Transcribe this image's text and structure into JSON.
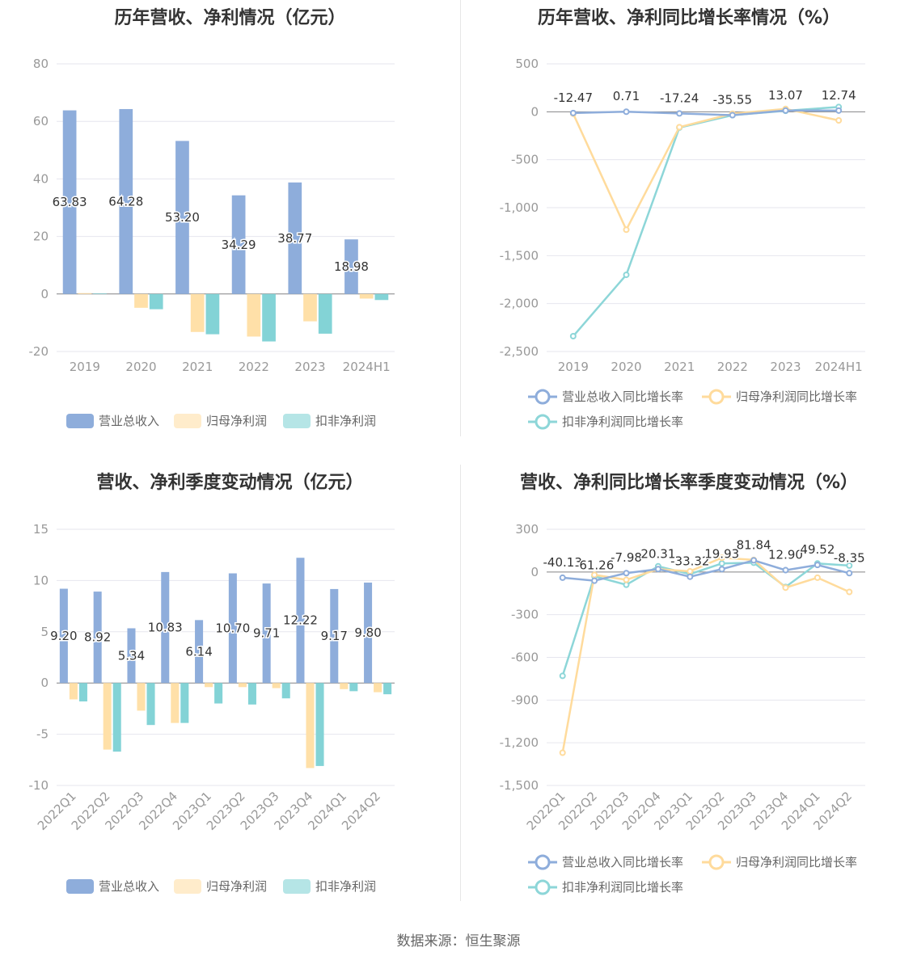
{
  "colors": {
    "revenue": "#8eaddb",
    "net_profit": "#ffe0a8",
    "deducted_profit": "#83d3d6",
    "net_profit_line": "#ffdb9c",
    "deducted_line": "#8dd6d8"
  },
  "footer": "数据来源：恒生聚源",
  "chart_data": [
    {
      "type": "bar",
      "title": "历年营收、净利情况（亿元）",
      "categories": [
        "2019",
        "2020",
        "2021",
        "2022",
        "2023",
        "2024H1"
      ],
      "series": [
        {
          "name": "营业总收入",
          "values": [
            63.83,
            64.28,
            53.2,
            34.29,
            38.77,
            18.98
          ],
          "labels": [
            "63.83",
            "64.28",
            "53.20",
            "34.29",
            "38.77",
            "18.98"
          ]
        },
        {
          "name": "归母净利润",
          "values": [
            0.3,
            -4.8,
            -13.2,
            -14.8,
            -9.5,
            -1.6
          ]
        },
        {
          "name": "扣非净利润",
          "values": [
            0.2,
            -5.3,
            -14.0,
            -16.5,
            -13.8,
            -2.1
          ]
        }
      ],
      "ylim": [
        -20,
        80
      ],
      "yticks": [
        -20,
        0,
        20,
        40,
        60,
        80
      ],
      "yticklabels": [
        "-20",
        "0",
        "20",
        "40",
        "60",
        "80"
      ],
      "legend": "bottom"
    },
    {
      "type": "line",
      "title": "历年营收、净利同比增长率情况（%）",
      "categories": [
        "2019",
        "2020",
        "2021",
        "2022",
        "2023",
        "2024H1"
      ],
      "series": [
        {
          "name": "营业总收入同比增长率",
          "values": [
            -12.47,
            0.71,
            -17.24,
            -35.55,
            13.07,
            12.74
          ],
          "labels": [
            "-12.47",
            "0.71",
            "-17.24",
            "-35.55",
            "13.07",
            "12.74"
          ]
        },
        {
          "name": "归母净利润同比增长率",
          "values": [
            -20,
            -1230,
            -160,
            -20,
            30,
            -90
          ]
        },
        {
          "name": "扣非净利润同比增长率",
          "values": [
            -2340,
            -1700,
            -165,
            -35,
            10,
            50
          ]
        }
      ],
      "ylim": [
        -2500,
        500
      ],
      "yticks": [
        -2500,
        -2000,
        -1500,
        -1000,
        -500,
        0,
        500
      ],
      "yticklabels": [
        "-2,500",
        "-2,000",
        "-1,500",
        "-1,000",
        "-500",
        "0",
        "500"
      ],
      "legend": "bottom"
    },
    {
      "type": "bar",
      "title": "营收、净利季度变动情况（亿元）",
      "categories": [
        "2022Q1",
        "2022Q2",
        "2022Q3",
        "2022Q4",
        "2023Q1",
        "2023Q2",
        "2023Q3",
        "2023Q4",
        "2024Q1",
        "2024Q2"
      ],
      "series": [
        {
          "name": "营业总收入",
          "values": [
            9.2,
            8.92,
            5.34,
            10.83,
            6.14,
            10.7,
            9.71,
            12.22,
            9.17,
            9.8
          ],
          "labels": [
            "9.20",
            "8.92",
            "5.34",
            "10.83",
            "6.14",
            "10.70",
            "9.71",
            "12.22",
            "9.17",
            "9.80"
          ]
        },
        {
          "name": "归母净利润",
          "values": [
            -1.6,
            -6.5,
            -2.7,
            -3.9,
            -0.4,
            -0.4,
            -0.5,
            -8.3,
            -0.6,
            -0.9
          ]
        },
        {
          "name": "扣非净利润",
          "values": [
            -1.8,
            -6.7,
            -4.1,
            -3.9,
            -2.0,
            -2.1,
            -1.5,
            -8.1,
            -0.8,
            -1.1
          ]
        }
      ],
      "ylim": [
        -10,
        15
      ],
      "yticks": [
        -10,
        -5,
        0,
        5,
        10,
        15
      ],
      "yticklabels": [
        "-10",
        "-5",
        "0",
        "5",
        "10",
        "15"
      ],
      "legend": "bottom"
    },
    {
      "type": "line",
      "title": "营收、净利同比增长率季度变动情况（%）",
      "categories": [
        "2022Q1",
        "2022Q2",
        "2022Q3",
        "2022Q4",
        "2023Q1",
        "2023Q2",
        "2023Q3",
        "2023Q4",
        "2024Q1",
        "2024Q2"
      ],
      "series": [
        {
          "name": "营业总收入同比增长率",
          "values": [
            -40.13,
            -61.26,
            -7.98,
            20.31,
            -33.32,
            19.93,
            81.84,
            12.9,
            49.52,
            -8.35
          ],
          "labels": [
            "-40.13",
            "-61.26",
            "-7.98",
            "20.31",
            "-33.32",
            "19.93",
            "81.84",
            "12.90",
            "49.52",
            "-8.35"
          ]
        },
        {
          "name": "归母净利润同比增长率",
          "values": [
            -1270,
            -20,
            -55,
            20,
            5,
            100,
            85,
            -110,
            -40,
            -140
          ]
        },
        {
          "name": "扣非净利润同比增长率",
          "values": [
            -730,
            -30,
            -90,
            40,
            -15,
            60,
            65,
            -105,
            60,
            45
          ]
        }
      ],
      "ylim": [
        -1500,
        300
      ],
      "yticks": [
        -1500,
        -1200,
        -900,
        -600,
        -300,
        0,
        300
      ],
      "yticklabels": [
        "-1,500",
        "-1,200",
        "-900",
        "-600",
        "-300",
        "0",
        "300"
      ],
      "legend": "bottom"
    }
  ]
}
